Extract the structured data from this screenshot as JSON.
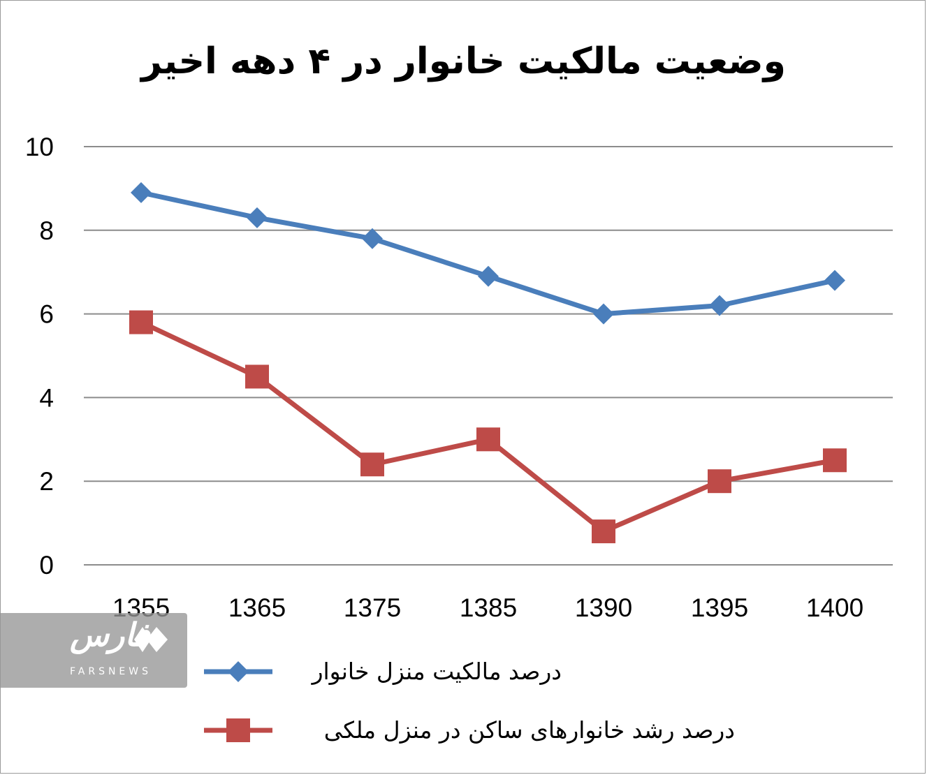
{
  "chart_data": {
    "type": "line",
    "title": "وضعیت مالکیت خانوار در ۴ دهه اخیر",
    "categories": [
      "1355",
      "1365",
      "1375",
      "1385",
      "1390",
      "1395",
      "1400"
    ],
    "y_ticks": [
      "0",
      "2",
      "4",
      "6",
      "8",
      "10"
    ],
    "ylim": [
      0,
      10
    ],
    "grid": "horizontal",
    "legend_position": "bottom",
    "series": [
      {
        "name": "درصد مالکیت منزل خانوار",
        "color": "#4a7ebb",
        "marker": "diamond",
        "values": [
          8.9,
          8.3,
          7.8,
          6.9,
          6.0,
          6.2,
          6.8
        ]
      },
      {
        "name": "درصد رشد خانوارهای ساکن در منزل ملکی",
        "color": "#be4b48",
        "marker": "square",
        "values": [
          5.8,
          4.5,
          2.4,
          3.0,
          0.8,
          2.0,
          2.5
        ]
      }
    ]
  },
  "watermark": {
    "name": "فارس",
    "sub": "FARSNEWS",
    "icon": "farsnews-logo-icon"
  }
}
